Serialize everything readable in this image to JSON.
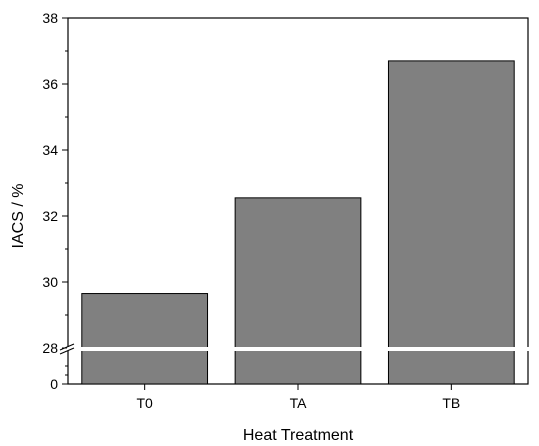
{
  "chart_data": {
    "type": "bar",
    "title": "",
    "xlabel": "Heat Treatment",
    "ylabel": "IACS / %",
    "categories": [
      "T0",
      "TA",
      "TB"
    ],
    "values": [
      29.65,
      32.55,
      36.7
    ],
    "ylim": [
      0,
      38
    ],
    "y_axis_break": [
      0,
      28
    ],
    "yticks_lower": [
      "0"
    ],
    "yticks_upper": [
      "28",
      "30",
      "32",
      "34",
      "36",
      "38"
    ],
    "bar_color": "#808080",
    "grid": false,
    "legend": "none"
  }
}
